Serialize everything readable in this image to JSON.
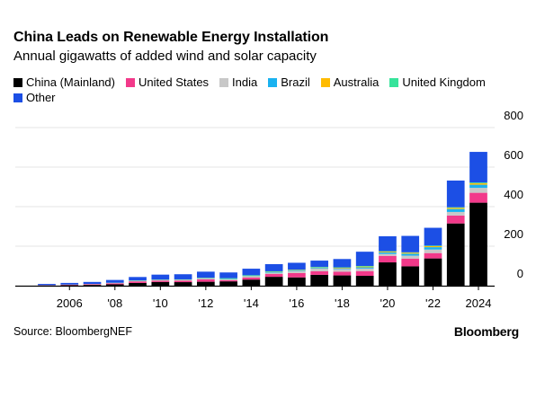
{
  "title": "China Leads on Renewable Energy Installation",
  "subtitle": "Annual gigawatts of added wind and solar capacity",
  "source": "Source: BloombergNEF",
  "brand": "Bloomberg",
  "colors": {
    "China (Mainland)": "#000000",
    "United States": "#f2398a",
    "India": "#c8c8c8",
    "Brazil": "#1ab2f0",
    "Australia": "#ffbb00",
    "United Kingdom": "#36e39b",
    "Other": "#1c4fe5"
  },
  "chart_data": {
    "type": "bar",
    "stacked": true,
    "categories": [
      "2005",
      "2006",
      "2007",
      "2008",
      "2009",
      "2010",
      "2011",
      "2012",
      "2013",
      "2014",
      "2015",
      "2016",
      "2017",
      "2018",
      "2019",
      "2020",
      "2021",
      "2022",
      "2023",
      "2024"
    ],
    "x_tick_labels": [
      {
        "category": "2006",
        "label": "2006"
      },
      {
        "category": "2008",
        "label": "'08"
      },
      {
        "category": "2010",
        "label": "'10"
      },
      {
        "category": "2012",
        "label": "'12"
      },
      {
        "category": "2014",
        "label": "'14"
      },
      {
        "category": "2016",
        "label": "'16"
      },
      {
        "category": "2018",
        "label": "'18"
      },
      {
        "category": "2020",
        "label": "'20"
      },
      {
        "category": "2022",
        "label": "'22"
      },
      {
        "category": "2024",
        "label": "2024"
      }
    ],
    "y_ticks": [
      0,
      200,
      400,
      600,
      800
    ],
    "ylim": [
      0,
      800
    ],
    "series": [
      {
        "name": "China (Mainland)",
        "values": [
          1,
          3,
          4,
          7,
          14,
          19,
          18,
          20,
          22,
          31,
          45,
          42,
          55,
          52,
          50,
          118,
          98,
          138,
          315,
          420
        ]
      },
      {
        "name": "United States",
        "values": [
          1,
          2,
          3,
          5,
          8,
          7,
          8,
          12,
          6,
          10,
          14,
          22,
          18,
          19,
          24,
          33,
          39,
          27,
          40,
          50
        ]
      },
      {
        "name": "India",
        "values": [
          1,
          1,
          2,
          2,
          2,
          2,
          3,
          4,
          4,
          6,
          7,
          10,
          13,
          13,
          13,
          10,
          15,
          18,
          18,
          25
        ]
      },
      {
        "name": "Brazil",
        "values": [
          0,
          0,
          0,
          0,
          1,
          1,
          1,
          1,
          2,
          2,
          3,
          3,
          4,
          4,
          6,
          8,
          10,
          12,
          15,
          16
        ]
      },
      {
        "name": "Australia",
        "values": [
          0,
          0,
          0,
          0,
          1,
          1,
          1,
          1,
          1,
          1,
          1,
          2,
          2,
          3,
          4,
          4,
          5,
          5,
          6,
          7
        ]
      },
      {
        "name": "United Kingdom",
        "values": [
          0,
          0,
          0,
          1,
          1,
          1,
          1,
          2,
          3,
          3,
          3,
          2,
          3,
          2,
          3,
          2,
          2,
          3,
          3,
          4
        ]
      },
      {
        "name": "Other",
        "values": [
          6,
          8,
          10,
          14,
          17,
          25,
          26,
          31,
          29,
          33,
          36,
          35,
          32,
          42,
          72,
          75,
          83,
          90,
          135,
          155
        ]
      }
    ]
  }
}
